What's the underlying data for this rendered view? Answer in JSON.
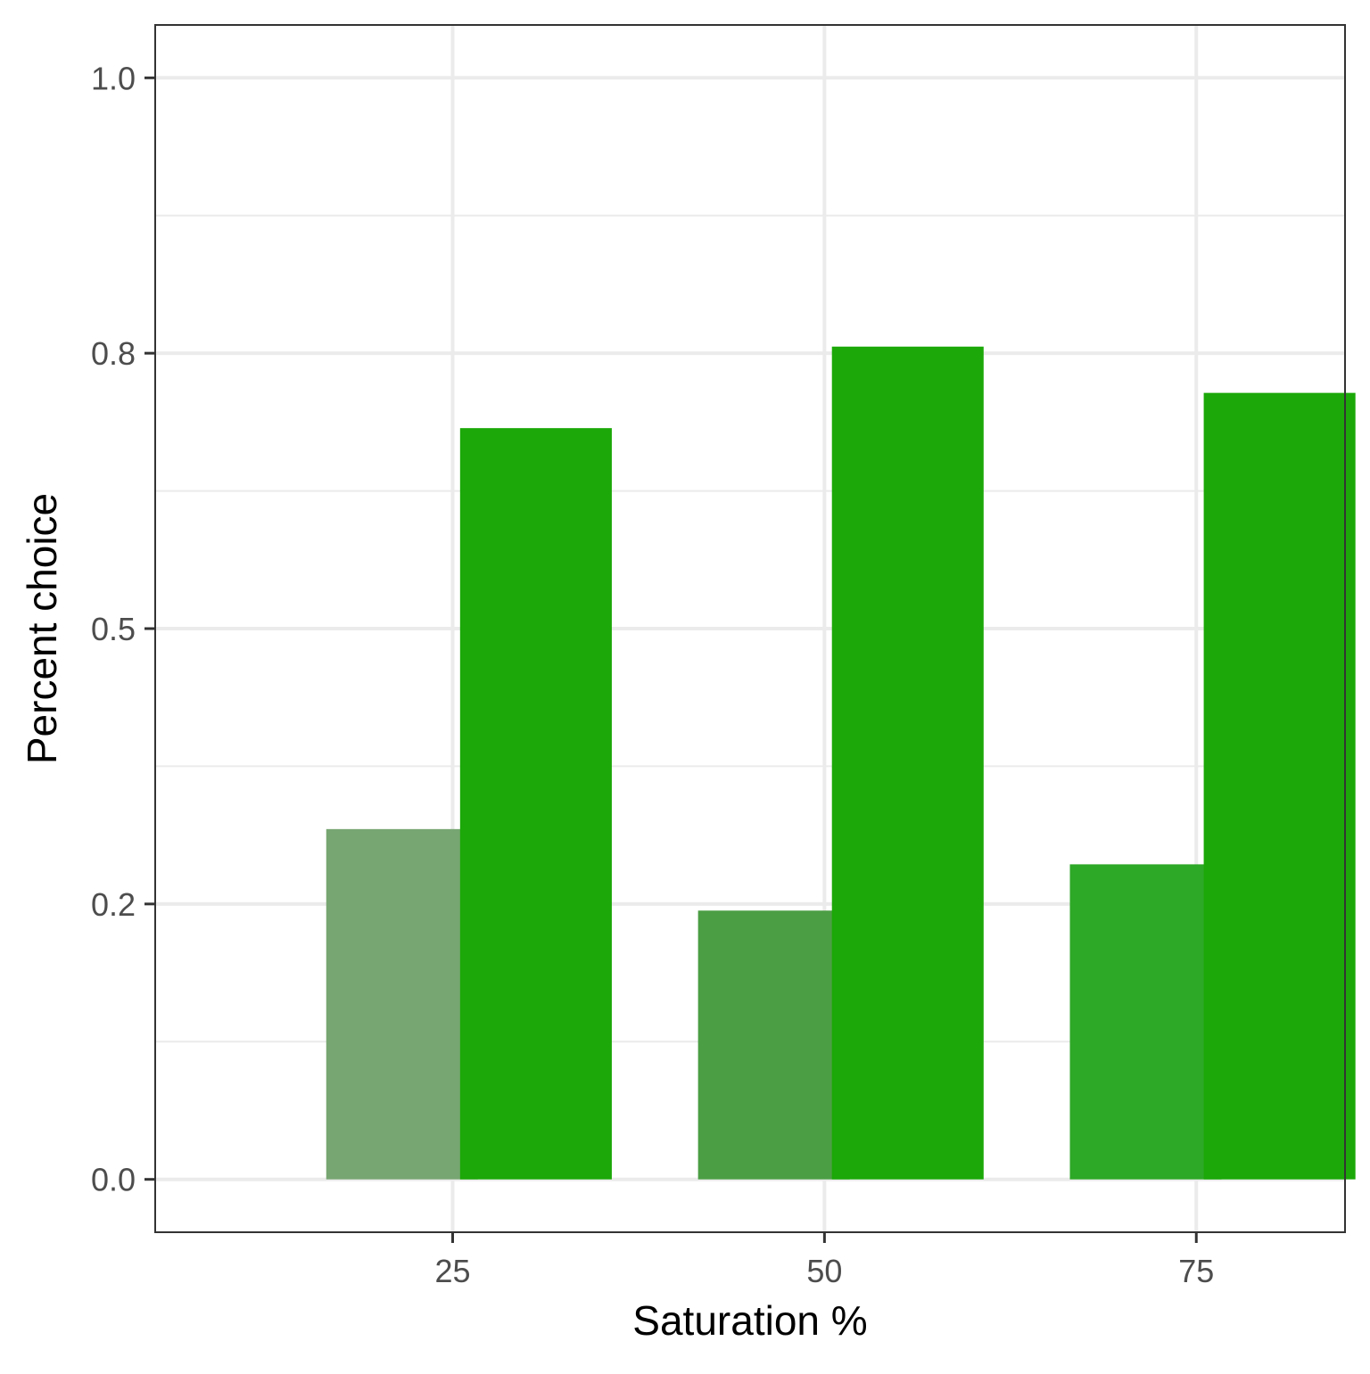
{
  "chart_data": {
    "type": "bar",
    "xlabel": "Saturation %",
    "ylabel": "Percent choice",
    "x_ticks": [
      "25",
      "50",
      "75"
    ],
    "y_ticks": [
      "0.0",
      "0.2",
      "0.5",
      "0.8",
      "1.0"
    ],
    "y_tick_values": [
      0,
      0.25,
      0.5,
      0.75,
      1.0
    ],
    "x_tick_values": [
      25,
      50,
      75
    ],
    "xlim": [
      5,
      85
    ],
    "ylim": [
      -0.048,
      1.048
    ],
    "grid": true,
    "bars": [
      {
        "x": 21.6,
        "width": 10.2,
        "value": 0.318,
        "color": "#77a672"
      },
      {
        "x": 30.6,
        "width": 10.2,
        "value": 0.682,
        "color": "#1ba808"
      },
      {
        "x": 46.6,
        "width": 10.2,
        "value": 0.244,
        "color": "#4c9e45"
      },
      {
        "x": 55.6,
        "width": 10.2,
        "value": 0.756,
        "color": "#1ba808"
      },
      {
        "x": 71.6,
        "width": 10.2,
        "value": 0.286,
        "color": "#2ea827"
      },
      {
        "x": 80.6,
        "width": 10.2,
        "value": 0.714,
        "color": "#1ba808"
      }
    ]
  }
}
